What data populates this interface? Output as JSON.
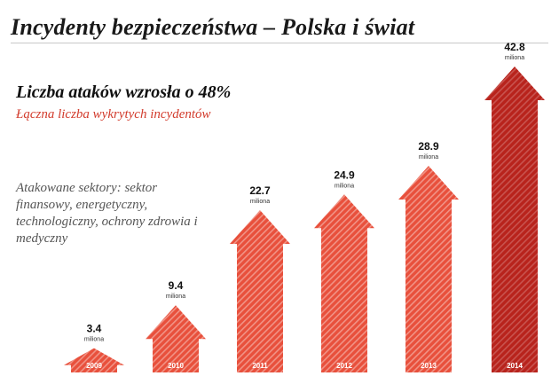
{
  "page": {
    "title": "Incydenty bezpieczeństwa – Polska i świat",
    "headline": "Liczba ataków wzrosła o 48%",
    "subheadline": "Łączna liczba wykrytych incydentów",
    "note": "Atakowane sektory: sektor finansowy, energetyczny, technologiczny, ochrony zdrowia i medyczny"
  },
  "colors": {
    "arrow": "#e8503c",
    "arrow_stripe": "#ffffff",
    "arrow_highlight": "#b8231c",
    "subheadline": "#d23b2c"
  },
  "chart_data": {
    "type": "bar",
    "title": "Łączna liczba wykrytych incydentów",
    "categories": [
      "2009",
      "2010",
      "2011",
      "2012",
      "2013",
      "2014"
    ],
    "values": [
      3.4,
      9.4,
      22.7,
      24.9,
      28.9,
      42.8
    ],
    "value_labels": [
      "3.4",
      "9.4",
      "22.7",
      "24.9",
      "28.9",
      "42.8"
    ],
    "unit": "miliona",
    "series": [
      {
        "values": [
          3.4,
          9.4,
          22.7,
          24.9,
          28.9,
          42.8
        ]
      }
    ],
    "highlight_index": 5,
    "bar_shape": "arrow",
    "grid": false,
    "legend": "none",
    "ylim": [
      0,
      42.8
    ]
  }
}
